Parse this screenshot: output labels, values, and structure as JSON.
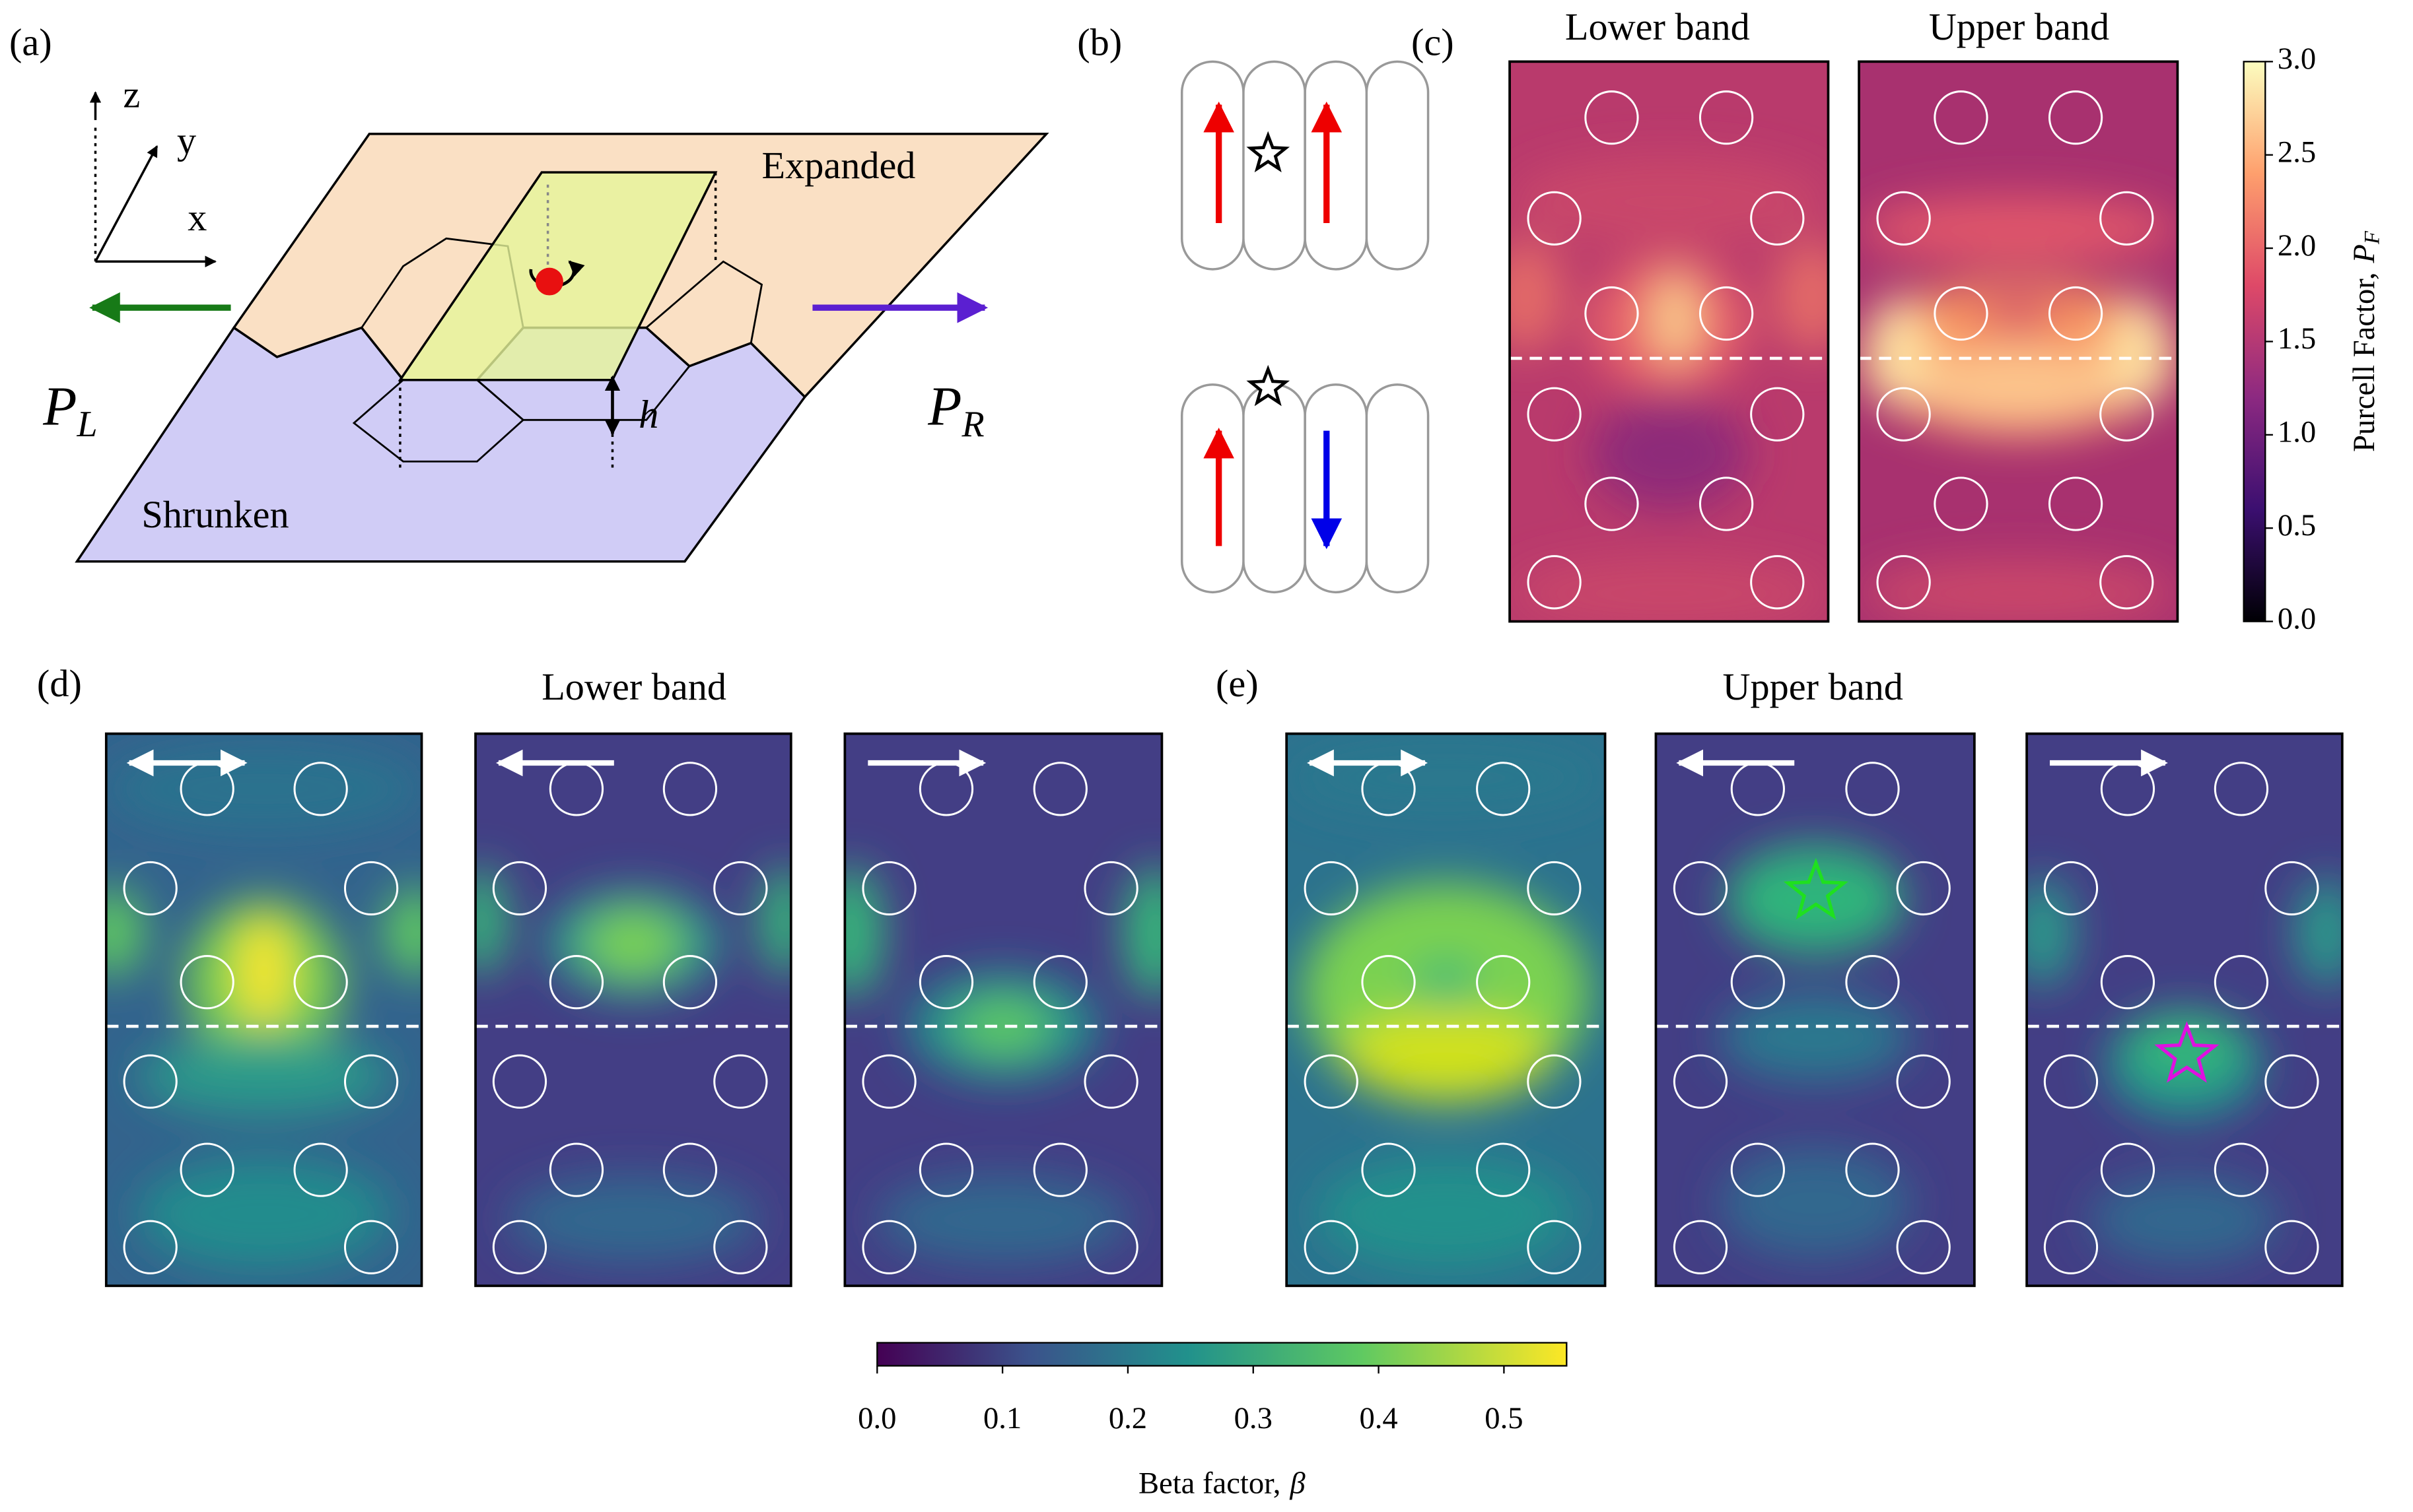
{
  "panel_labels": [
    "(a)",
    "(b)",
    "(c)",
    "(d)",
    "(e)"
  ],
  "a": {
    "axis_labels": [
      "z",
      "y",
      "x"
    ],
    "expanded": "Expanded",
    "shrunken": "Shrunken",
    "p_left": {
      "symbol": "P",
      "sub": "L"
    },
    "p_right": {
      "symbol": "P",
      "sub": "R"
    },
    "height": "h"
  },
  "c": {
    "titles": [
      "Lower band",
      "Upper band"
    ]
  },
  "purcell_colorbar": {
    "label": "Purcell Factor,",
    "symbol": "P",
    "sub": "F",
    "lim": [
      0,
      3
    ],
    "ticks": [
      {
        "value": 0,
        "label": "0.0"
      },
      0.5,
      {
        "value": 1,
        "label": "1.0"
      },
      1.5,
      {
        "value": 2,
        "label": "2.0"
      },
      2.5,
      {
        "value": 3,
        "label": "3.0"
      }
    ]
  },
  "d": {
    "title": "Lower band"
  },
  "e": {
    "title": "Upper band"
  },
  "beta_colorbar": {
    "label": "Beta factor,",
    "symbol": "β",
    "lim": [
      0,
      0.55
    ],
    "ticks": [
      {
        "value": 0,
        "label": "0.0"
      },
      0.1,
      0.2,
      0.3,
      0.4,
      0.5
    ]
  }
}
